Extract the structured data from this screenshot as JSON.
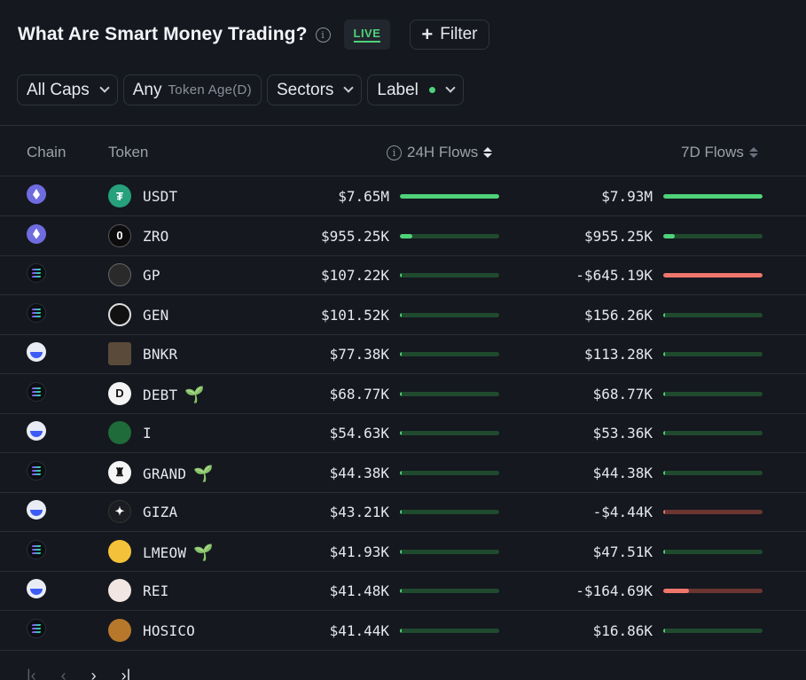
{
  "header": {
    "title": "What Are Smart Money Trading?",
    "info_symbol": "i",
    "live_label": "LIVE",
    "filter_label": "Filter"
  },
  "filters": {
    "caps": "All Caps",
    "age_value": "Any",
    "age_label": "Token Age(D)",
    "sectors": "Sectors",
    "label": "Label"
  },
  "columns": {
    "chain": "Chain",
    "token": "Token",
    "flows_24h": "24H Flows",
    "flows_7d": "7D Flows"
  },
  "colors": {
    "positive": "#4fd27a",
    "positive_track": "#1f4a2e",
    "negative": "#f0766c",
    "negative_track": "#6b3532"
  },
  "rows": [
    {
      "chain": "ethereum",
      "symbol": "USDT",
      "icon": "tether-icon",
      "flow24": "$7.65M",
      "fill24": 1.0,
      "sign24": "pos",
      "flow7": "$7.93M",
      "fill7": 1.0,
      "sign7": "pos",
      "new": false
    },
    {
      "chain": "ethereum",
      "symbol": "ZRO",
      "icon": "layerzero-icon",
      "flow24": "$955.25K",
      "fill24": 0.125,
      "sign24": "pos",
      "flow7": "$955.25K",
      "fill7": 0.12,
      "sign7": "pos",
      "new": false
    },
    {
      "chain": "solana",
      "symbol": "GP",
      "icon": "gp-icon",
      "flow24": "$107.22K",
      "fill24": 0.014,
      "sign24": "pos",
      "flow7": "-$645.19K",
      "fill7": 1.0,
      "sign7": "neg",
      "new": false
    },
    {
      "chain": "solana",
      "symbol": "GEN",
      "icon": "gen-icon",
      "flow24": "$101.52K",
      "fill24": 0.013,
      "sign24": "pos",
      "flow7": "$156.26K",
      "fill7": 0.02,
      "sign7": "pos",
      "new": false
    },
    {
      "chain": "base",
      "symbol": "BNKR",
      "icon": "bnkr-icon",
      "flow24": "$77.38K",
      "fill24": 0.01,
      "sign24": "pos",
      "flow7": "$113.28K",
      "fill7": 0.014,
      "sign7": "pos",
      "new": false
    },
    {
      "chain": "solana",
      "symbol": "DEBT",
      "icon": "debt-icon",
      "flow24": "$68.77K",
      "fill24": 0.009,
      "sign24": "pos",
      "flow7": "$68.77K",
      "fill7": 0.009,
      "sign7": "pos",
      "new": true
    },
    {
      "chain": "base",
      "symbol": "I",
      "icon": "i-token-icon",
      "flow24": "$54.63K",
      "fill24": 0.007,
      "sign24": "pos",
      "flow7": "$53.36K",
      "fill7": 0.007,
      "sign7": "pos",
      "new": false
    },
    {
      "chain": "solana",
      "symbol": "GRAND",
      "icon": "grand-icon",
      "flow24": "$44.38K",
      "fill24": 0.006,
      "sign24": "pos",
      "flow7": "$44.38K",
      "fill7": 0.006,
      "sign7": "pos",
      "new": true
    },
    {
      "chain": "base",
      "symbol": "GIZA",
      "icon": "giza-icon",
      "flow24": "$43.21K",
      "fill24": 0.006,
      "sign24": "pos",
      "flow7": "-$4.44K",
      "fill7": 0.007,
      "sign7": "neg",
      "new": false
    },
    {
      "chain": "solana",
      "symbol": "LMEOW",
      "icon": "lmeow-icon",
      "flow24": "$41.93K",
      "fill24": 0.005,
      "sign24": "pos",
      "flow7": "$47.51K",
      "fill7": 0.006,
      "sign7": "pos",
      "new": true
    },
    {
      "chain": "base",
      "symbol": "REI",
      "icon": "rei-icon",
      "flow24": "$41.48K",
      "fill24": 0.005,
      "sign24": "pos",
      "flow7": "-$164.69K",
      "fill7": 0.26,
      "sign7": "neg",
      "new": false
    },
    {
      "chain": "solana",
      "symbol": "HOSICO",
      "icon": "hosico-icon",
      "flow24": "$41.44K",
      "fill24": 0.005,
      "sign24": "pos",
      "flow7": "$16.86K",
      "fill7": 0.002,
      "sign7": "pos",
      "new": false
    }
  ]
}
